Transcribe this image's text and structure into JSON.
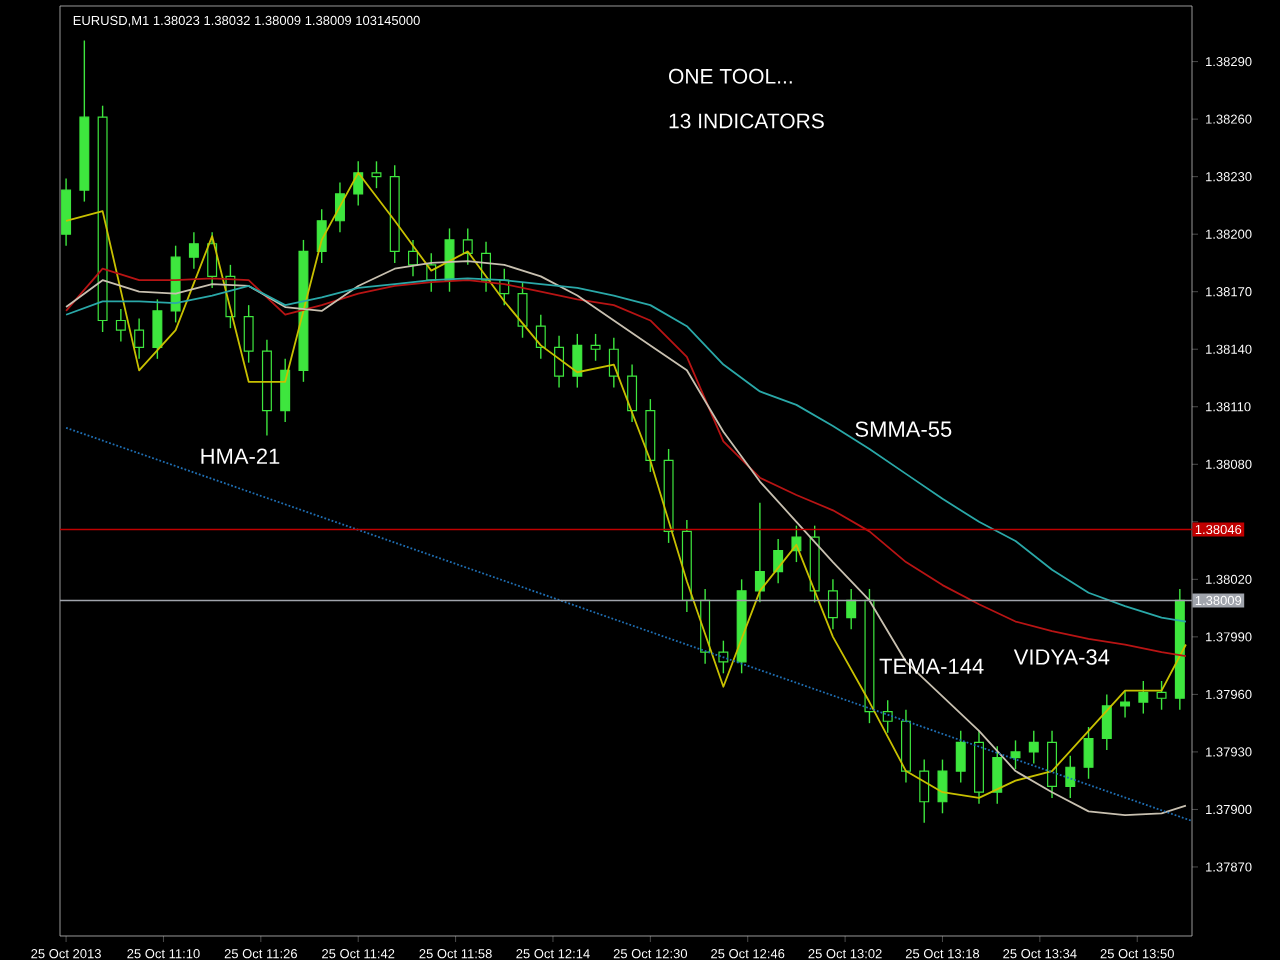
{
  "chart_data": {
    "type": "candlestick",
    "title": "EURUSD,M1 1.38023 1.38032 1.38009 1.38009 103145000",
    "color": "#3ee63e",
    "x": [
      "2013-10-25T10:54",
      "2013-10-25T10:57",
      "2013-10-25T11:00",
      "2013-10-25T11:03",
      "2013-10-25T11:06",
      "2013-10-25T11:09",
      "2013-10-25T11:12",
      "2013-10-25T11:15",
      "2013-10-25T11:18",
      "2013-10-25T11:21",
      "2013-10-25T11:24",
      "2013-10-25T11:27",
      "2013-10-25T11:30",
      "2013-10-25T11:33",
      "2013-10-25T11:36",
      "2013-10-25T11:39",
      "2013-10-25T11:42",
      "2013-10-25T11:45",
      "2013-10-25T11:48",
      "2013-10-25T11:51",
      "2013-10-25T11:54",
      "2013-10-25T11:57",
      "2013-10-25T12:00",
      "2013-10-25T12:03",
      "2013-10-25T12:06",
      "2013-10-25T12:09",
      "2013-10-25T12:12",
      "2013-10-25T12:15",
      "2013-10-25T12:18",
      "2013-10-25T12:21",
      "2013-10-25T12:24",
      "2013-10-25T12:27",
      "2013-10-25T12:30",
      "2013-10-25T12:33",
      "2013-10-25T12:36",
      "2013-10-25T12:39",
      "2013-10-25T12:42",
      "2013-10-25T12:45",
      "2013-10-25T12:48",
      "2013-10-25T12:51",
      "2013-10-25T12:54",
      "2013-10-25T12:57",
      "2013-10-25T13:00",
      "2013-10-25T13:03",
      "2013-10-25T13:06",
      "2013-10-25T13:09",
      "2013-10-25T13:12",
      "2013-10-25T13:15",
      "2013-10-25T13:18",
      "2013-10-25T13:21",
      "2013-10-25T13:24",
      "2013-10-25T13:27",
      "2013-10-25T13:30",
      "2013-10-25T13:33",
      "2013-10-25T13:36",
      "2013-10-25T13:39",
      "2013-10-25T13:42",
      "2013-10-25T13:45",
      "2013-10-25T13:48",
      "2013-10-25T13:51",
      "2013-10-25T13:54",
      "2013-10-25T13:57"
    ],
    "ohlc": [
      [
        1.382,
        1.38229,
        1.38194,
        1.38223
      ],
      [
        1.38223,
        1.38301,
        1.38217,
        1.38261
      ],
      [
        1.38261,
        1.38267,
        1.38149,
        1.38155
      ],
      [
        1.38155,
        1.38161,
        1.38144,
        1.3815
      ],
      [
        1.3815,
        1.38156,
        1.38135,
        1.38141
      ],
      [
        1.38141,
        1.38166,
        1.38135,
        1.3816
      ],
      [
        1.3816,
        1.38194,
        1.38154,
        1.38188
      ],
      [
        1.38188,
        1.38201,
        1.38182,
        1.38195
      ],
      [
        1.38195,
        1.38201,
        1.38172,
        1.38178
      ],
      [
        1.38178,
        1.38184,
        1.38151,
        1.38157
      ],
      [
        1.38157,
        1.38163,
        1.38133,
        1.38139
      ],
      [
        1.38139,
        1.38145,
        1.38095,
        1.38108
      ],
      [
        1.38108,
        1.38135,
        1.38102,
        1.38129
      ],
      [
        1.38129,
        1.38197,
        1.38123,
        1.38191
      ],
      [
        1.38191,
        1.38213,
        1.38185,
        1.38207
      ],
      [
        1.38207,
        1.38227,
        1.38201,
        1.38221
      ],
      [
        1.38221,
        1.38238,
        1.38215,
        1.38232
      ],
      [
        1.38232,
        1.38238,
        1.38224,
        1.3823
      ],
      [
        1.3823,
        1.38236,
        1.38185,
        1.38191
      ],
      [
        1.38191,
        1.38197,
        1.38178,
        1.38184
      ],
      [
        1.38184,
        1.3819,
        1.3817,
        1.38176
      ],
      [
        1.38176,
        1.38203,
        1.3817,
        1.38197
      ],
      [
        1.38197,
        1.38203,
        1.38184,
        1.3819
      ],
      [
        1.3819,
        1.38196,
        1.3817,
        1.38176
      ],
      [
        1.38176,
        1.38182,
        1.38163,
        1.38169
      ],
      [
        1.38169,
        1.38175,
        1.38146,
        1.38152
      ],
      [
        1.38152,
        1.38158,
        1.38135,
        1.38141
      ],
      [
        1.38141,
        1.38147,
        1.3812,
        1.38126
      ],
      [
        1.38126,
        1.38148,
        1.3812,
        1.38142
      ],
      [
        1.38142,
        1.38148,
        1.38134,
        1.3814
      ],
      [
        1.3814,
        1.38146,
        1.3812,
        1.38126
      ],
      [
        1.38126,
        1.38132,
        1.38102,
        1.38108
      ],
      [
        1.38108,
        1.38114,
        1.38076,
        1.38082
      ],
      [
        1.38082,
        1.38088,
        1.38039,
        1.38045
      ],
      [
        1.38045,
        1.38051,
        1.38003,
        1.38009
      ],
      [
        1.38009,
        1.38015,
        1.37976,
        1.37982
      ],
      [
        1.37982,
        1.37988,
        1.37971,
        1.37977
      ],
      [
        1.37977,
        1.3802,
        1.37971,
        1.38014
      ],
      [
        1.38014,
        1.3806,
        1.38008,
        1.38024
      ],
      [
        1.38024,
        1.38041,
        1.38018,
        1.38035
      ],
      [
        1.38035,
        1.38048,
        1.38029,
        1.38042
      ],
      [
        1.38042,
        1.38048,
        1.38008,
        1.38014
      ],
      [
        1.38014,
        1.3802,
        1.37994,
        1.38
      ],
      [
        1.38,
        1.38015,
        1.37994,
        1.38009
      ],
      [
        1.38009,
        1.38015,
        1.37945,
        1.37951
      ],
      [
        1.37951,
        1.37957,
        1.3794,
        1.37946
      ],
      [
        1.37946,
        1.37952,
        1.37914,
        1.3792
      ],
      [
        1.3792,
        1.37926,
        1.37893,
        1.37904
      ],
      [
        1.37904,
        1.37926,
        1.37898,
        1.3792
      ],
      [
        1.3792,
        1.37941,
        1.37914,
        1.37935
      ],
      [
        1.37935,
        1.37941,
        1.37903,
        1.37909
      ],
      [
        1.37909,
        1.37933,
        1.37903,
        1.37927
      ],
      [
        1.37927,
        1.37936,
        1.37921,
        1.3793
      ],
      [
        1.3793,
        1.37941,
        1.37924,
        1.37935
      ],
      [
        1.37935,
        1.37941,
        1.37906,
        1.37912
      ],
      [
        1.37912,
        1.37928,
        1.37906,
        1.37922
      ],
      [
        1.37922,
        1.37943,
        1.37916,
        1.37937
      ],
      [
        1.37937,
        1.3796,
        1.37931,
        1.37954
      ],
      [
        1.37954,
        1.37962,
        1.37948,
        1.37956
      ],
      [
        1.37956,
        1.37967,
        1.3795,
        1.37961
      ],
      [
        1.37961,
        1.37967,
        1.37952,
        1.37958
      ],
      [
        1.37958,
        1.38015,
        1.37952,
        1.38009
      ]
    ],
    "series": [
      {
        "type": "line",
        "color": "#c8c000",
        "x": [
          "2013-10-25T10:54",
          "2013-10-25T11:00",
          "2013-10-25T11:06",
          "2013-10-25T11:12",
          "2013-10-25T11:18",
          "2013-10-25T11:24",
          "2013-10-25T11:30",
          "2013-10-25T11:36",
          "2013-10-25T11:42",
          "2013-10-25T11:48",
          "2013-10-25T11:54",
          "2013-10-25T12:00",
          "2013-10-25T12:06",
          "2013-10-25T12:12",
          "2013-10-25T12:18",
          "2013-10-25T12:24",
          "2013-10-25T12:30",
          "2013-10-25T12:36",
          "2013-10-25T12:42",
          "2013-10-25T12:48",
          "2013-10-25T12:54",
          "2013-10-25T13:00",
          "2013-10-25T13:06",
          "2013-10-25T13:12",
          "2013-10-25T13:18",
          "2013-10-25T13:24",
          "2013-10-25T13:30",
          "2013-10-25T13:36",
          "2013-10-25T13:42",
          "2013-10-25T13:48",
          "2013-10-25T13:54",
          "2013-10-25T13:58"
        ],
        "values": [
          1.38207,
          1.38212,
          1.38129,
          1.3815,
          1.38199,
          1.38123,
          1.38123,
          1.38197,
          1.38232,
          1.38207,
          1.38181,
          1.38191,
          1.38165,
          1.38142,
          1.38128,
          1.38132,
          1.38082,
          1.38019,
          1.37964,
          1.38014,
          1.38038,
          1.3799,
          1.37956,
          1.3792,
          1.37909,
          1.37906,
          1.37915,
          1.3792,
          1.37941,
          1.37962,
          1.37962,
          1.37986
        ]
      },
      {
        "type": "line",
        "color": "#b81414",
        "x": [
          "2013-10-25T10:54",
          "2013-10-25T11:00",
          "2013-10-25T11:06",
          "2013-10-25T11:12",
          "2013-10-25T11:18",
          "2013-10-25T11:24",
          "2013-10-25T11:30",
          "2013-10-25T11:36",
          "2013-10-25T11:42",
          "2013-10-25T11:48",
          "2013-10-25T11:54",
          "2013-10-25T12:00",
          "2013-10-25T12:06",
          "2013-10-25T12:12",
          "2013-10-25T12:18",
          "2013-10-25T12:24",
          "2013-10-25T12:30",
          "2013-10-25T12:36",
          "2013-10-25T12:42",
          "2013-10-25T12:48",
          "2013-10-25T12:54",
          "2013-10-25T13:00",
          "2013-10-25T13:06",
          "2013-10-25T13:12",
          "2013-10-25T13:18",
          "2013-10-25T13:24",
          "2013-10-25T13:30",
          "2013-10-25T13:36",
          "2013-10-25T13:42",
          "2013-10-25T13:48",
          "2013-10-25T13:54",
          "2013-10-25T13:58"
        ],
        "values": [
          1.3816,
          1.38182,
          1.38176,
          1.38176,
          1.38177,
          1.38176,
          1.38158,
          1.38163,
          1.38169,
          1.38173,
          1.38175,
          1.38176,
          1.38174,
          1.3817,
          1.38166,
          1.38163,
          1.38155,
          1.38136,
          1.38092,
          1.38073,
          1.38064,
          1.38056,
          1.38045,
          1.38029,
          1.38017,
          1.38007,
          1.37998,
          1.37993,
          1.37989,
          1.37986,
          1.37982,
          1.3798
        ]
      },
      {
        "type": "line",
        "color": "#c8c0b0",
        "x": [
          "2013-10-25T10:54",
          "2013-10-25T11:00",
          "2013-10-25T11:06",
          "2013-10-25T11:12",
          "2013-10-25T11:18",
          "2013-10-25T11:24",
          "2013-10-25T11:30",
          "2013-10-25T11:36",
          "2013-10-25T11:42",
          "2013-10-25T11:48",
          "2013-10-25T11:54",
          "2013-10-25T12:00",
          "2013-10-25T12:06",
          "2013-10-25T12:12",
          "2013-10-25T12:18",
          "2013-10-25T12:24",
          "2013-10-25T12:30",
          "2013-10-25T12:36",
          "2013-10-25T12:42",
          "2013-10-25T12:48",
          "2013-10-25T12:54",
          "2013-10-25T13:00",
          "2013-10-25T13:06",
          "2013-10-25T13:12",
          "2013-10-25T13:18",
          "2013-10-25T13:24",
          "2013-10-25T13:30",
          "2013-10-25T13:36",
          "2013-10-25T13:42",
          "2013-10-25T13:48",
          "2013-10-25T13:54",
          "2013-10-25T13:58"
        ],
        "values": [
          1.38162,
          1.38176,
          1.3817,
          1.38169,
          1.38174,
          1.38173,
          1.38162,
          1.3816,
          1.38173,
          1.38182,
          1.38185,
          1.38186,
          1.38184,
          1.38178,
          1.38168,
          1.38155,
          1.38142,
          1.38129,
          1.38097,
          1.38071,
          1.3805,
          1.38029,
          1.38009,
          1.37977,
          1.37959,
          1.37941,
          1.3792,
          1.37909,
          1.37899,
          1.37897,
          1.37898,
          1.37902
        ]
      },
      {
        "type": "line",
        "color": "#2aa8a8",
        "x": [
          "2013-10-25T10:54",
          "2013-10-25T11:00",
          "2013-10-25T11:06",
          "2013-10-25T11:12",
          "2013-10-25T11:18",
          "2013-10-25T11:24",
          "2013-10-25T11:30",
          "2013-10-25T11:36",
          "2013-10-25T11:42",
          "2013-10-25T11:48",
          "2013-10-25T11:54",
          "2013-10-25T12:00",
          "2013-10-25T12:06",
          "2013-10-25T12:12",
          "2013-10-25T12:18",
          "2013-10-25T12:24",
          "2013-10-25T12:30",
          "2013-10-25T12:36",
          "2013-10-25T12:42",
          "2013-10-25T12:48",
          "2013-10-25T12:54",
          "2013-10-25T13:00",
          "2013-10-25T13:06",
          "2013-10-25T13:12",
          "2013-10-25T13:18",
          "2013-10-25T13:24",
          "2013-10-25T13:30",
          "2013-10-25T13:36",
          "2013-10-25T13:42",
          "2013-10-25T13:48",
          "2013-10-25T13:54",
          "2013-10-25T13:58"
        ],
        "values": [
          1.38158,
          1.38165,
          1.38165,
          1.38164,
          1.38168,
          1.38173,
          1.38163,
          1.38167,
          1.38172,
          1.38174,
          1.38176,
          1.38177,
          1.38176,
          1.38174,
          1.38172,
          1.38168,
          1.38163,
          1.38152,
          1.38132,
          1.38118,
          1.38111,
          1.381,
          1.38088,
          1.38075,
          1.38062,
          1.3805,
          1.3804,
          1.38025,
          1.38013,
          1.38006,
          1.38,
          1.37998
        ]
      },
      {
        "type": "line",
        "color": "#1f6fb4",
        "line_style": "dotted",
        "x": [
          "2013-10-25T10:54",
          "2013-10-25T13:59"
        ],
        "values": [
          1.38099,
          1.37894
        ]
      }
    ],
    "ref_lines": [
      {
        "axis": "y",
        "value": 1.38046,
        "label": "1.38046",
        "color": "#c00000"
      },
      {
        "axis": "y",
        "value": 1.38009,
        "label": "1.38009",
        "color": "#a0a4ac"
      }
    ],
    "annotations": [
      "ONE TOOL...",
      "13 INDICATORS",
      "HMA-21",
      "SMMA-55",
      "VIDYA-34",
      "TEMA-144"
    ],
    "xlim": [
      "2013-10-25T10:53",
      "2013-10-25T13:59"
    ],
    "ylim": [
      1.37834,
      1.38319
    ],
    "xticks": [
      {
        "value": "2013-10-25T10:54",
        "label": "25 Oct 2013"
      },
      {
        "value": "2013-10-25T11:10",
        "label": "25 Oct 11:10"
      },
      {
        "value": "2013-10-25T11:26",
        "label": "25 Oct 11:26"
      },
      {
        "value": "2013-10-25T11:42",
        "label": "25 Oct 11:42"
      },
      {
        "value": "2013-10-25T11:58",
        "label": "25 Oct 11:58"
      },
      {
        "value": "2013-10-25T12:14",
        "label": "25 Oct 12:14"
      },
      {
        "value": "2013-10-25T12:30",
        "label": "25 Oct 12:30"
      },
      {
        "value": "2013-10-25T12:46",
        "label": "25 Oct 12:46"
      },
      {
        "value": "2013-10-25T13:02",
        "label": "25 Oct 13:02"
      },
      {
        "value": "2013-10-25T13:18",
        "label": "25 Oct 13:18"
      },
      {
        "value": "2013-10-25T13:34",
        "label": "25 Oct 13:34"
      },
      {
        "value": "2013-10-25T13:50",
        "label": "25 Oct 13:50"
      }
    ],
    "yticks": [
      {
        "value": 1.3787,
        "label": "1.37870"
      },
      {
        "value": 1.379,
        "label": "1.37900"
      },
      {
        "value": 1.3793,
        "label": "1.37930"
      },
      {
        "value": 1.3796,
        "label": "1.37960"
      },
      {
        "value": 1.3799,
        "label": "1.37990"
      },
      {
        "value": 1.3802,
        "label": "1.38020"
      },
      {
        "value": 1.3805,
        "label": null
      },
      {
        "value": 1.3808,
        "label": "1.38080"
      },
      {
        "value": 1.3811,
        "label": "1.38110"
      },
      {
        "value": 1.3814,
        "label": "1.38140"
      },
      {
        "value": 1.3817,
        "label": "1.38170"
      },
      {
        "value": 1.382,
        "label": "1.38200"
      },
      {
        "value": 1.3823,
        "label": "1.38230"
      },
      {
        "value": 1.3826,
        "label": "1.38260"
      },
      {
        "value": 1.3829,
        "label": "1.38290"
      }
    ]
  }
}
